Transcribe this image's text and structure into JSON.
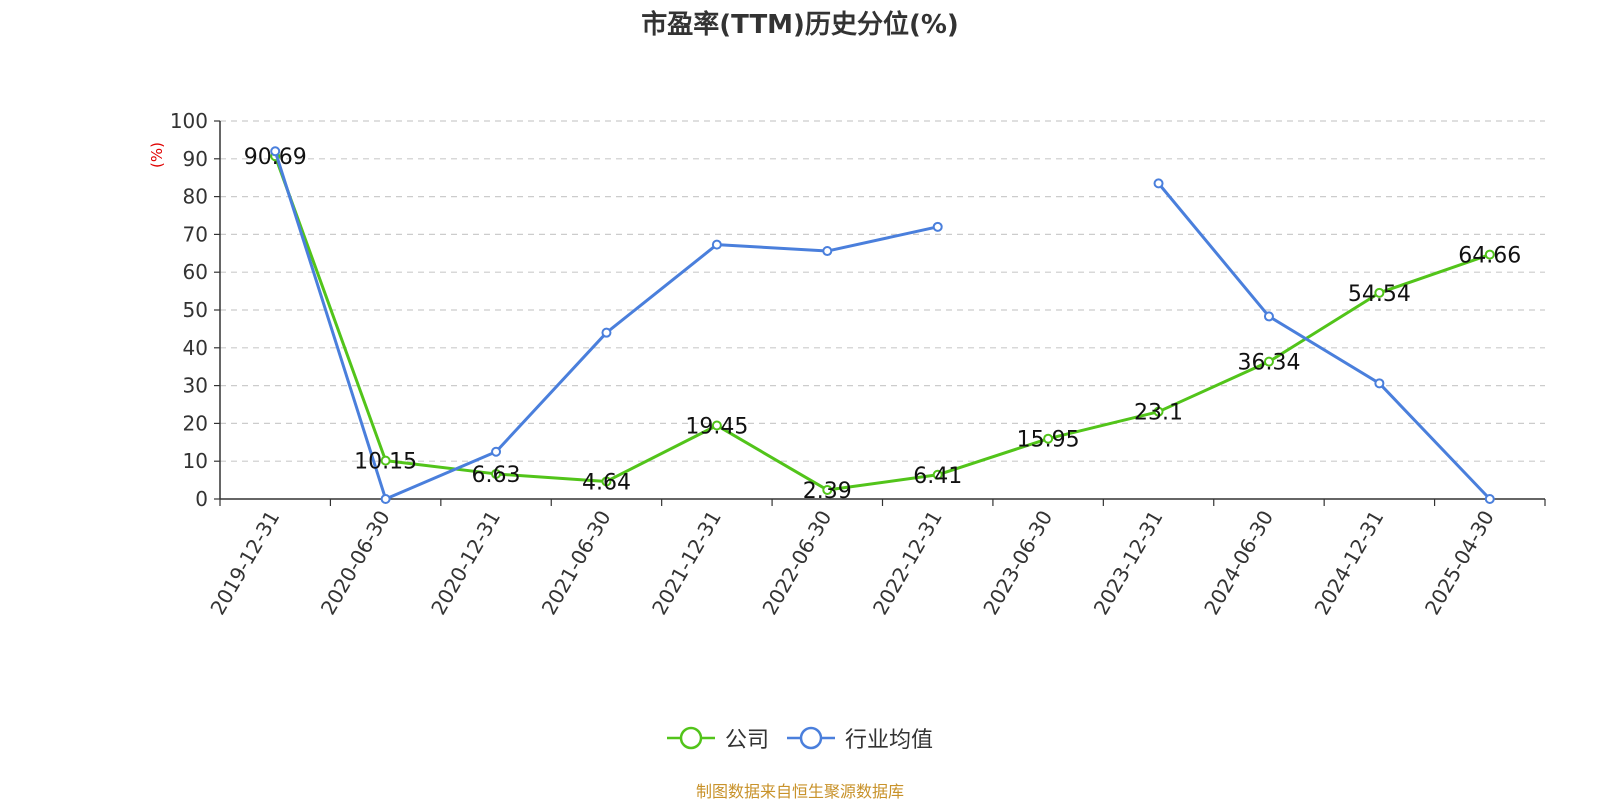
{
  "chart_data": {
    "type": "line",
    "title": "市盈率(TTM)历史分位(%)",
    "ylabel": "(%)",
    "ylim": [
      0,
      100
    ],
    "yticks": [
      0,
      10,
      20,
      30,
      40,
      50,
      60,
      70,
      80,
      90,
      100
    ],
    "categories": [
      "2019-12-31",
      "2020-06-30",
      "2020-12-31",
      "2021-06-30",
      "2021-12-31",
      "2022-06-30",
      "2022-12-31",
      "2023-06-30",
      "2023-12-31",
      "2024-06-30",
      "2024-12-31",
      "2025-04-30"
    ],
    "grid": true,
    "legend_position": "bottom",
    "series": [
      {
        "name": "公司",
        "color": "#52c41a",
        "values": [
          90.69,
          10.15,
          6.63,
          4.64,
          19.45,
          2.39,
          6.41,
          15.95,
          23.1,
          36.34,
          54.54,
          64.66
        ],
        "labels": [
          "90.69",
          "10.15",
          "6.63",
          "4.64",
          "19.45",
          "2.39",
          "6.41",
          "15.95",
          "23.1",
          "36.34",
          "54.54",
          "64.66"
        ]
      },
      {
        "name": "行业均值",
        "color": "#4a7fdc",
        "values": [
          92,
          0,
          12.5,
          44,
          67.3,
          65.6,
          72,
          null,
          83.5,
          48.3,
          30.6,
          0
        ]
      }
    ]
  },
  "source": "制图数据来自恒生聚源数据库"
}
